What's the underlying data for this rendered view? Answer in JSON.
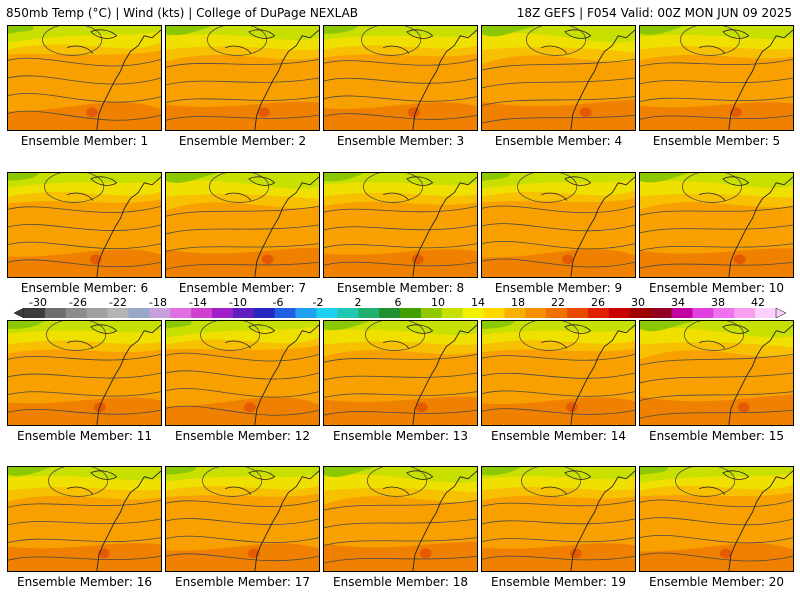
{
  "header": {
    "left": "850mb Temp (°C) | Wind (kts) | College of DuPage NEXLAB",
    "right": "18Z GEFS | F054 Valid: 00Z MON JUN 09 2025"
  },
  "members": [
    {
      "label": "Ensemble Member: 1"
    },
    {
      "label": "Ensemble Member: 2"
    },
    {
      "label": "Ensemble Member: 3"
    },
    {
      "label": "Ensemble Member: 4"
    },
    {
      "label": "Ensemble Member: 5"
    },
    {
      "label": "Ensemble Member: 6"
    },
    {
      "label": "Ensemble Member: 7"
    },
    {
      "label": "Ensemble Member: 8"
    },
    {
      "label": "Ensemble Member: 9"
    },
    {
      "label": "Ensemble Member: 10"
    },
    {
      "label": "Ensemble Member: 11"
    },
    {
      "label": "Ensemble Member: 12"
    },
    {
      "label": "Ensemble Member: 13"
    },
    {
      "label": "Ensemble Member: 14"
    },
    {
      "label": "Ensemble Member: 15"
    },
    {
      "label": "Ensemble Member: 16"
    },
    {
      "label": "Ensemble Member: 17"
    },
    {
      "label": "Ensemble Member: 18"
    },
    {
      "label": "Ensemble Member: 19"
    },
    {
      "label": "Ensemble Member: 20"
    }
  ],
  "colorbar": {
    "ticks": [
      "-30",
      "-26",
      "-22",
      "-18",
      "-14",
      "-10",
      "-6",
      "-2",
      "2",
      "6",
      "10",
      "14",
      "18",
      "22",
      "26",
      "30",
      "34",
      "38",
      "42"
    ],
    "colors": [
      "#3c3c3c",
      "#6e6e6e",
      "#8c8c8c",
      "#a0a0a0",
      "#b4b4b4",
      "#9aa8c8",
      "#c8a0dc",
      "#e070e0",
      "#d040d0",
      "#a020c8",
      "#6020c0",
      "#2828c0",
      "#2060e0",
      "#20a0f0",
      "#20d0f0",
      "#20c8b4",
      "#20b070",
      "#209030",
      "#40a000",
      "#90c800",
      "#c8e000",
      "#f0f000",
      "#ffd800",
      "#f7b000",
      "#f79000",
      "#f07000",
      "#e84800",
      "#e02000",
      "#c80000",
      "#a00000",
      "#900020",
      "#c000a0",
      "#e040e0",
      "#f070f0",
      "#f8a0f0",
      "#fcd0fc"
    ]
  },
  "colors": {
    "green": "#8cc800",
    "lime": "#c8e000",
    "yellow": "#f0e000",
    "amber": "#f7c000",
    "orange": "#f7a000",
    "deep_orange": "#f08000",
    "red": "#e05000"
  }
}
